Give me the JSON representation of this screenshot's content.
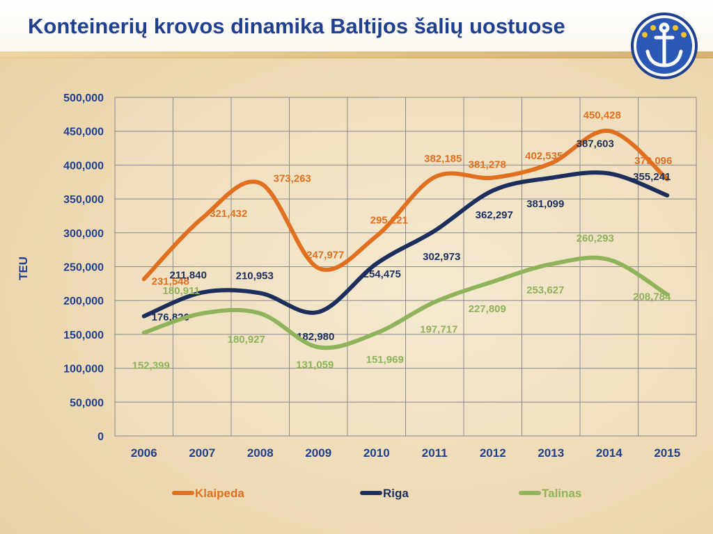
{
  "header": {
    "title": "Konteinerių krovos dinamika Baltijos šalių uostuose"
  },
  "colors": {
    "title": "#1f3f8f",
    "klaipeda": "#e07020",
    "riga": "#1c2f5c",
    "talinas": "#8fb35a"
  },
  "chart_data": {
    "type": "line",
    "title": "",
    "xlabel": "",
    "ylabel": "TEU",
    "categories": [
      "2006",
      "2007",
      "2008",
      "2009",
      "2010",
      "2011",
      "2012",
      "2013",
      "2014",
      "2015"
    ],
    "ylim": [
      0,
      500000
    ],
    "yticks": [
      "0",
      "50,000",
      "100,000",
      "150,000",
      "200,000",
      "250,000",
      "300,000",
      "350,000",
      "400,000",
      "450,000",
      "500,000"
    ],
    "grid": true,
    "legend": "bottom",
    "series": [
      {
        "name": "Klaipeda",
        "color": "#e07020",
        "values": [
          231548,
          321432,
          373263,
          247977,
          295221,
          382185,
          381278,
          402535,
          450428,
          379096
        ],
        "labels": [
          "231,548",
          "321,432",
          "373,263",
          "247,977",
          "295,221",
          "382,185",
          "381,278",
          "402,535",
          "450,428",
          "379,096"
        ]
      },
      {
        "name": "Riga",
        "color": "#1c2f5c",
        "values": [
          176826,
          211840,
          210953,
          182980,
          254475,
          302973,
          362297,
          381099,
          387603,
          355241
        ],
        "labels": [
          "176,826",
          "211,840",
          "210,953",
          "182,980",
          "254,475",
          "302,973",
          "362,297",
          "381,099",
          "387,603",
          "355,241"
        ]
      },
      {
        "name": "Talinas",
        "color": "#8fb35a",
        "values": [
          152399,
          180911,
          180927,
          131059,
          151969,
          197717,
          227809,
          253627,
          260293,
          208784
        ],
        "labels": [
          "152,399",
          "180,911",
          "180,927",
          "131,059",
          "151,969",
          "197,717",
          "227,809",
          "253,627",
          "260,293",
          "208,784"
        ]
      }
    ]
  }
}
